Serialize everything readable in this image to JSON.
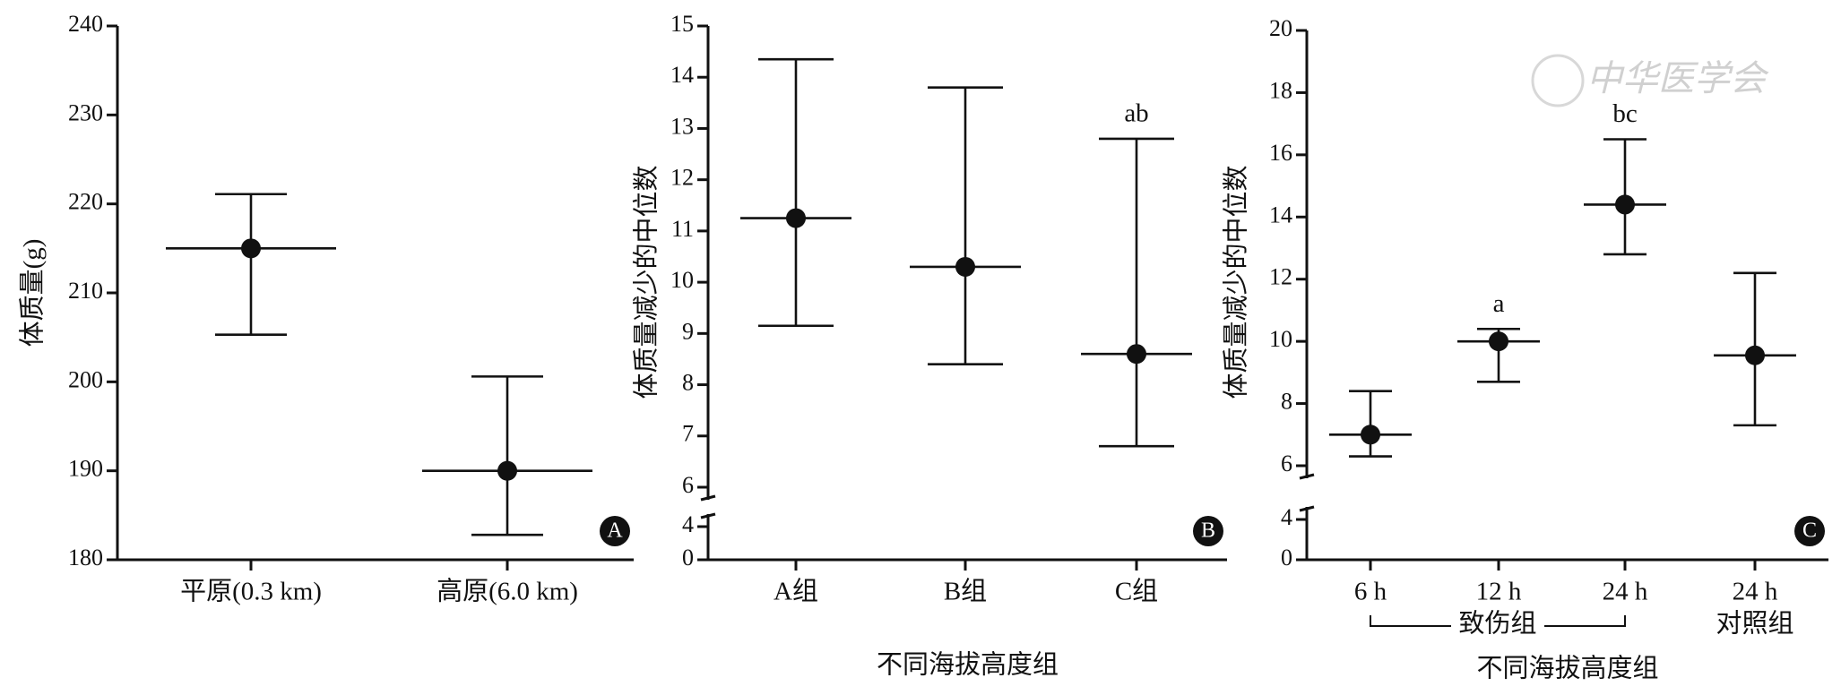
{
  "watermark": "中华医学会",
  "chart_data": [
    {
      "type": "errorbar",
      "badge": "A",
      "ylabel": "体质量(g)",
      "categories": [
        "平原(0.3 km)",
        "高原(6.0 km)"
      ],
      "values": [
        215,
        190
      ],
      "lower": [
        205.3,
        182.8
      ],
      "upper": [
        221.1,
        200.6
      ],
      "ylim": [
        180,
        240
      ],
      "yticks": [
        180,
        190,
        200,
        210,
        220,
        230,
        240
      ]
    },
    {
      "type": "errorbar",
      "badge": "B",
      "ylabel": "体质量减少的中位数",
      "xlabel": "不同海拔高度组",
      "categories": [
        "A组",
        "B组",
        "C组"
      ],
      "values": [
        11.25,
        10.3,
        8.6
      ],
      "lower": [
        9.15,
        8.4,
        6.8
      ],
      "upper": [
        14.35,
        13.8,
        12.8
      ],
      "annotations": [
        null,
        null,
        "ab"
      ],
      "ylim": [
        0,
        15
      ],
      "ybreak": [
        4,
        6
      ],
      "yticks": [
        0,
        4,
        6,
        7,
        8,
        9,
        10,
        11,
        12,
        13,
        14,
        15
      ]
    },
    {
      "type": "errorbar",
      "badge": "C",
      "ylabel": "体质量减少的中位数",
      "xlabel": "不同海拔高度组",
      "categories": [
        "6 h",
        "12 h",
        "24 h",
        "24 h"
      ],
      "x_group_labels": [
        "致伤组",
        "对照组"
      ],
      "values": [
        7.0,
        10.0,
        14.4,
        9.55
      ],
      "lower": [
        6.3,
        8.7,
        12.8,
        7.3
      ],
      "upper": [
        8.4,
        10.4,
        16.5,
        12.2
      ],
      "annotations": [
        null,
        "a",
        "bc",
        null
      ],
      "ylim": [
        0,
        20
      ],
      "ybreak": [
        4,
        6
      ],
      "yticks": [
        0,
        4,
        6,
        8,
        10,
        12,
        14,
        16,
        18,
        20
      ]
    }
  ]
}
